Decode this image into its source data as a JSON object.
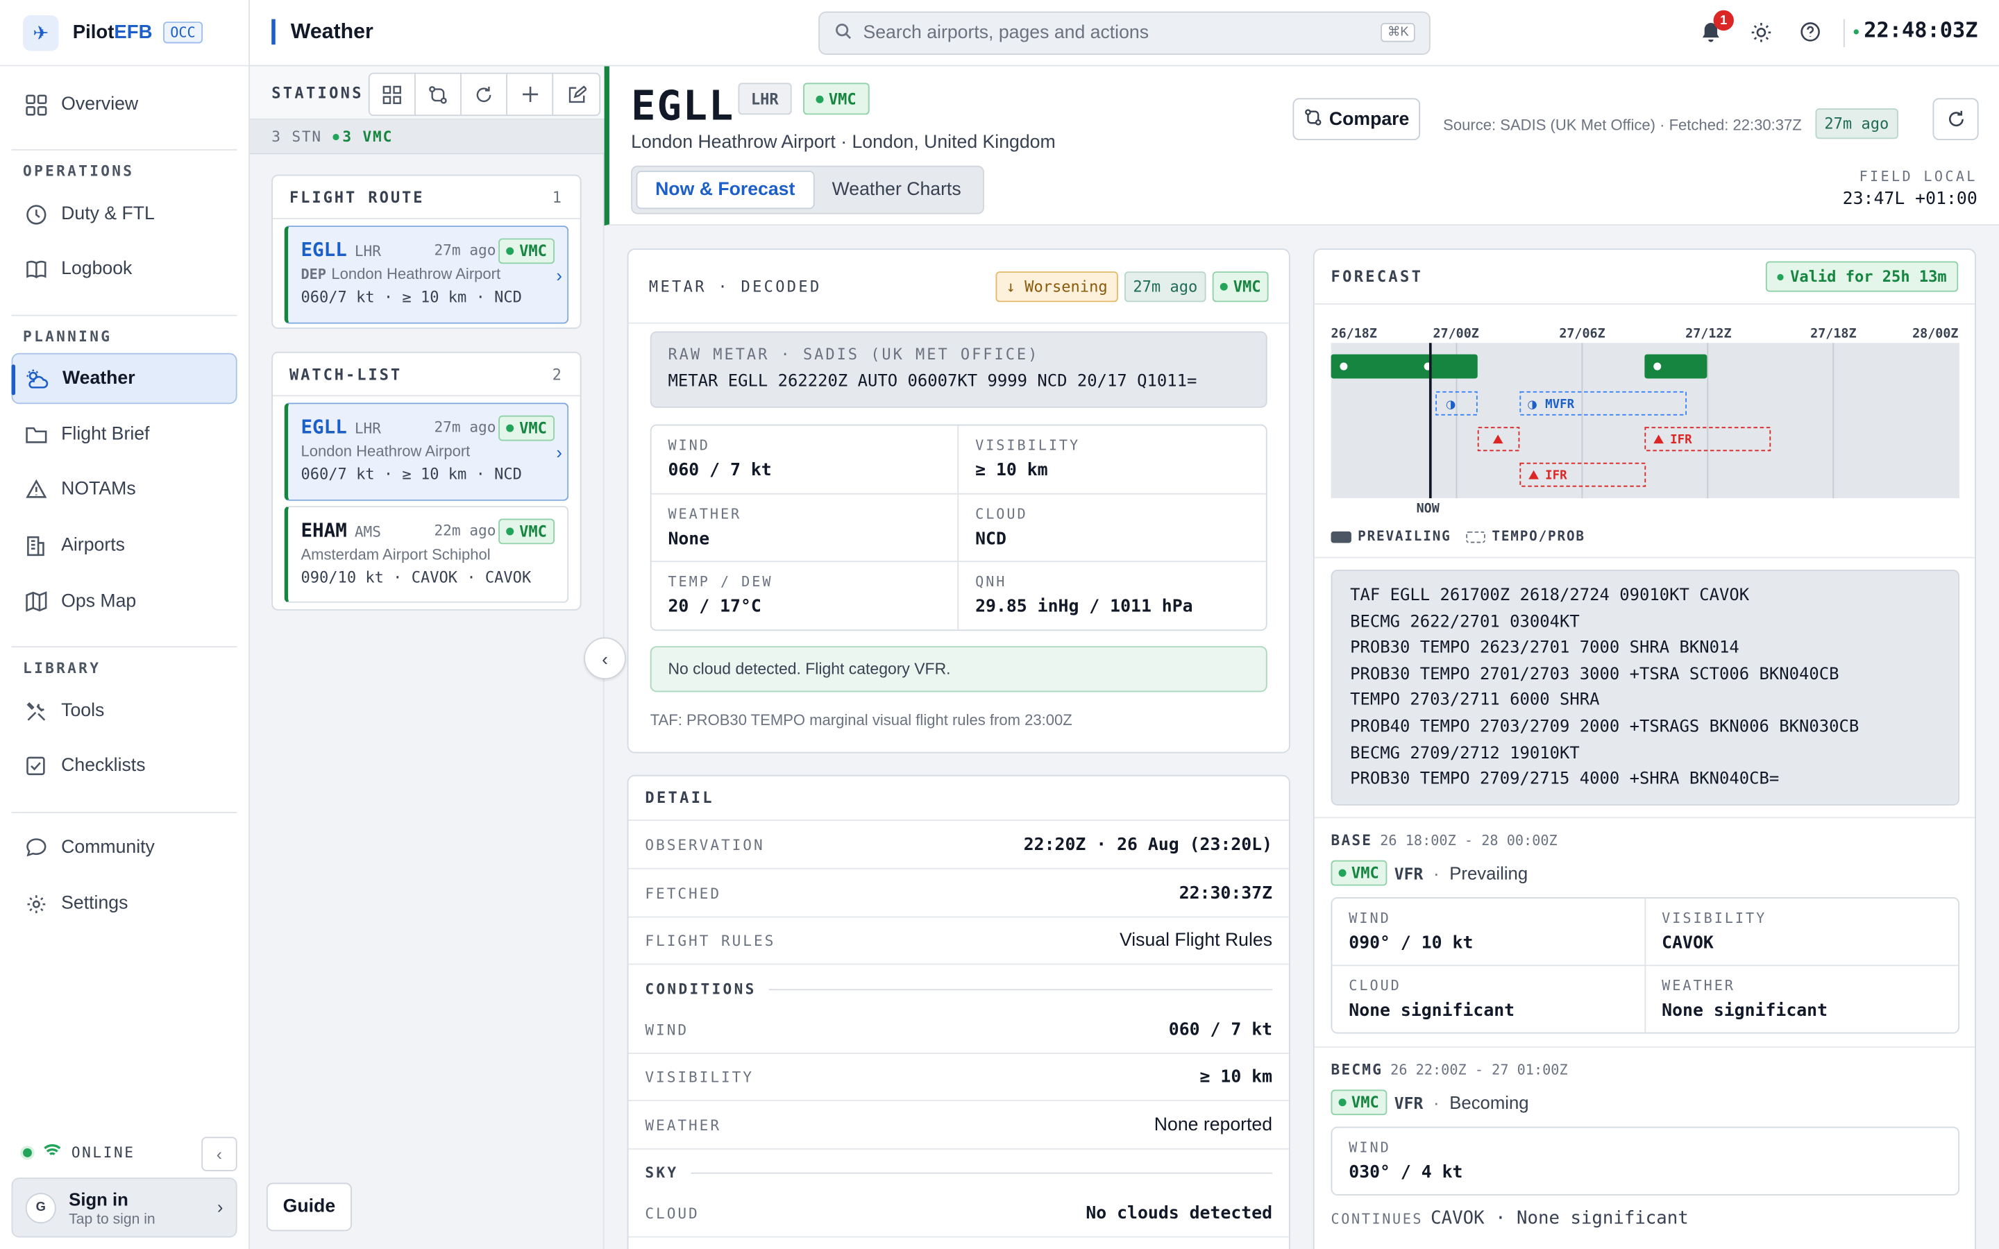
{
  "brand": {
    "name_a": "Pilot",
    "name_b": "EFB",
    "badge": "OCC"
  },
  "sidebar": {
    "overview": "Overview",
    "sections": {
      "operations": "OPERATIONS",
      "planning": "PLANNING",
      "library": "LIBRARY"
    },
    "items": {
      "duty": "Duty & FTL",
      "logbook": "Logbook",
      "weather": "Weather",
      "brief": "Flight Brief",
      "notams": "NOTAMs",
      "airports": "Airports",
      "opsmap": "Ops Map",
      "tools": "Tools",
      "checklists": "Checklists",
      "community": "Community",
      "settings": "Settings"
    },
    "online": "ONLINE",
    "signin": {
      "avatar": "G",
      "title": "Sign in",
      "subtitle": "Tap to sign in"
    }
  },
  "topbar": {
    "title": "Weather",
    "search_placeholder": "Search airports, pages and actions",
    "shortcut": "⌘K",
    "notif_count": "1",
    "clock": "22:48:03Z"
  },
  "stations": {
    "label": "STATIONS",
    "summary_count": "3 STN",
    "summary_vmc": "3 VMC",
    "route": {
      "title": "FLIGHT ROUTE",
      "count": "1",
      "card": {
        "icao": "EGLL",
        "iata": "LHR",
        "ago": "27m ago",
        "cat": "VMC",
        "tag": "DEP",
        "name": "London Heathrow Airport",
        "line": "060/7 kt · ≥ 10 km · NCD"
      }
    },
    "watch": {
      "title": "WATCH-LIST",
      "count": "2",
      "cards": [
        {
          "icao": "EGLL",
          "iata": "LHR",
          "ago": "27m ago",
          "cat": "VMC",
          "name": "London Heathrow Airport",
          "line": "060/7 kt · ≥ 10 km · NCD"
        },
        {
          "icao": "EHAM",
          "iata": "AMS",
          "ago": "22m ago",
          "cat": "VMC",
          "name": "Amsterdam Airport Schiphol",
          "line": "090/10 kt · CAVOK · CAVOK"
        }
      ]
    },
    "guide": "Guide"
  },
  "header": {
    "icao": "EGLL",
    "iata": "LHR",
    "cat": "VMC",
    "airport": "London Heathrow Airport · London, United Kingdom",
    "tabs": [
      "Now & Forecast",
      "Weather Charts"
    ],
    "compare": "Compare",
    "source": "Source: SADIS (UK Met Office) · Fetched: 22:30:37Z",
    "ago": "27m ago",
    "field_local_label": "FIELD LOCAL",
    "field_local_value": "23:47L +01:00"
  },
  "metar": {
    "title": "METAR · DECODED",
    "trend": "↓ Worsening",
    "ago": "27m ago",
    "cat": "VMC",
    "raw_label": "RAW METAR · SADIS (UK MET OFFICE)",
    "raw": "METAR EGLL 262220Z AUTO 06007KT 9999 NCD 20/17 Q1011=",
    "cells": [
      {
        "label": "WIND",
        "value": "060 / 7 kt"
      },
      {
        "label": "VISIBILITY",
        "value": "≥ 10 km"
      },
      {
        "label": "WEATHER",
        "value": "None"
      },
      {
        "label": "CLOUD",
        "value": "NCD"
      },
      {
        "label": "TEMP / DEW",
        "value": "20 / 17°C"
      },
      {
        "label": "QNH",
        "value": "29.85 inHg / 1011 hPa"
      }
    ],
    "note": "No cloud detected. Flight category VFR.",
    "taf_note": "TAF: PROB30 TEMPO marginal visual flight rules from 23:00Z"
  },
  "detail": {
    "title": "DETAIL",
    "rows": [
      {
        "label": "OBSERVATION",
        "value": "22:20Z · 26 Aug (23:20L)"
      },
      {
        "label": "FETCHED",
        "value": "22:30:37Z"
      },
      {
        "label": "FLIGHT RULES",
        "value": "Visual Flight Rules"
      }
    ],
    "conditions_label": "CONDITIONS",
    "conditions": [
      {
        "label": "WIND",
        "value": "060 / 7 kt"
      },
      {
        "label": "VISIBILITY",
        "value": "≥ 10 km"
      },
      {
        "label": "WEATHER",
        "value": "None reported"
      }
    ],
    "sky_label": "SKY",
    "sky": [
      {
        "label": "CLOUD",
        "value": "No clouds detected"
      }
    ]
  },
  "forecast": {
    "title": "FORECAST",
    "valid": "Valid for 25h 13m",
    "timeline_labels": [
      "26/18Z",
      "27/00Z",
      "27/06Z",
      "27/12Z",
      "27/18Z",
      "28/00Z"
    ],
    "now_label": "NOW",
    "tempo_labels": {
      "mvfr": "MVFR",
      "ifr1": "IFR",
      "ifr2": "IFR"
    },
    "legend": {
      "prevailing": "PREVAILING",
      "tempo": "TEMPO/PROB"
    },
    "taf_lines": [
      "TAF EGLL 261700Z 2618/2724 09010KT CAVOK",
      "BECMG 2622/2701 03004KT",
      "PROB30 TEMPO 2623/2701 7000 SHRA BKN014",
      "PROB30 TEMPO 2701/2703 3000 +TSRA SCT006 BKN040CB",
      "TEMPO 2703/2711 6000 SHRA",
      "PROB40 TEMPO 2703/2709 2000 +TSRAGS BKN006 BKN030CB",
      "BECMG 2709/2712 19010KT",
      "PROB30 TEMPO 2709/2715 4000 +SHRA BKN040CB="
    ],
    "base": {
      "key": "BASE",
      "range": "26 18:00Z - 28 00:00Z",
      "cat": "VMC",
      "rules": "VFR",
      "kind": "Prevailing",
      "cells": [
        {
          "label": "WIND",
          "value": "090° / 10 kt"
        },
        {
          "label": "VISIBILITY",
          "value": "CAVOK"
        },
        {
          "label": "CLOUD",
          "value": "None significant"
        },
        {
          "label": "WEATHER",
          "value": "None significant"
        }
      ]
    },
    "becmg": {
      "key": "BECMG",
      "range": "26 22:00Z - 27 01:00Z",
      "cat": "VMC",
      "rules": "VFR",
      "kind": "Becoming",
      "wind_label": "WIND",
      "wind_value": "030° / 4 kt",
      "continues_label": "CONTINUES",
      "continues_value": "CAVOK · None significant"
    }
  }
}
